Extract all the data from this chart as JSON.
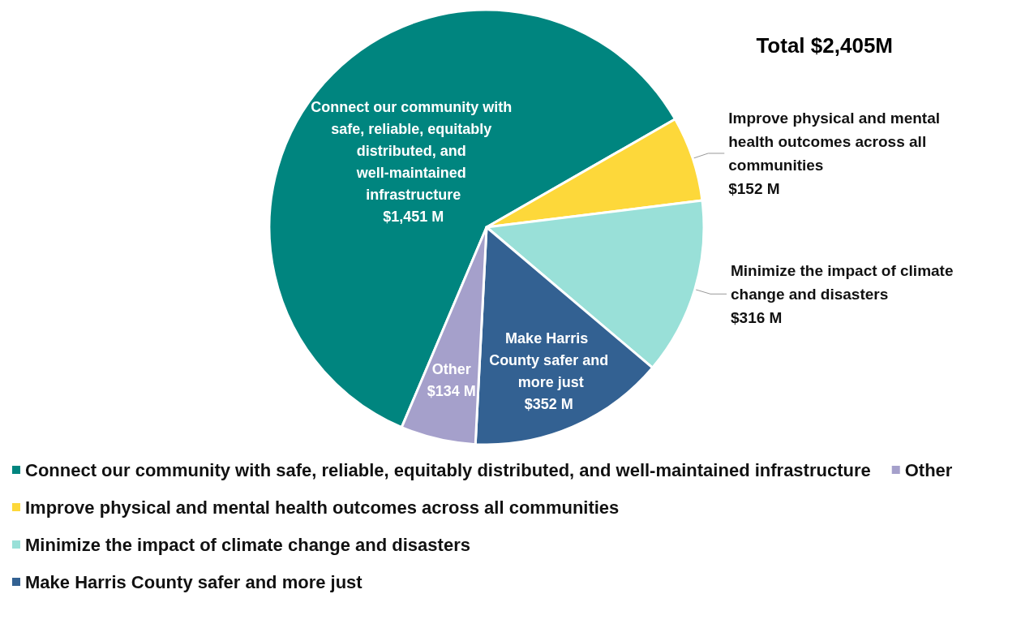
{
  "chart_data": {
    "type": "pie",
    "title": "Total $2,405M",
    "categories": [
      "Connect our community with safe, reliable, equitably distributed, and well-maintained infrastructure",
      "Improve physical and mental health outcomes across all communities",
      "Minimize the impact of climate change and disasters",
      "Make Harris County safer and more just",
      "Other"
    ],
    "values": [
      1451,
      152,
      316,
      352,
      134
    ],
    "value_labels": [
      "$1,451 M",
      "$152 M",
      "$316 M",
      "$352 M",
      "$134 M"
    ],
    "colors": [
      "#00857f",
      "#fdd83a",
      "#99e0d8",
      "#336192",
      "#a5a0cb"
    ],
    "legend": "bottom left"
  }
}
